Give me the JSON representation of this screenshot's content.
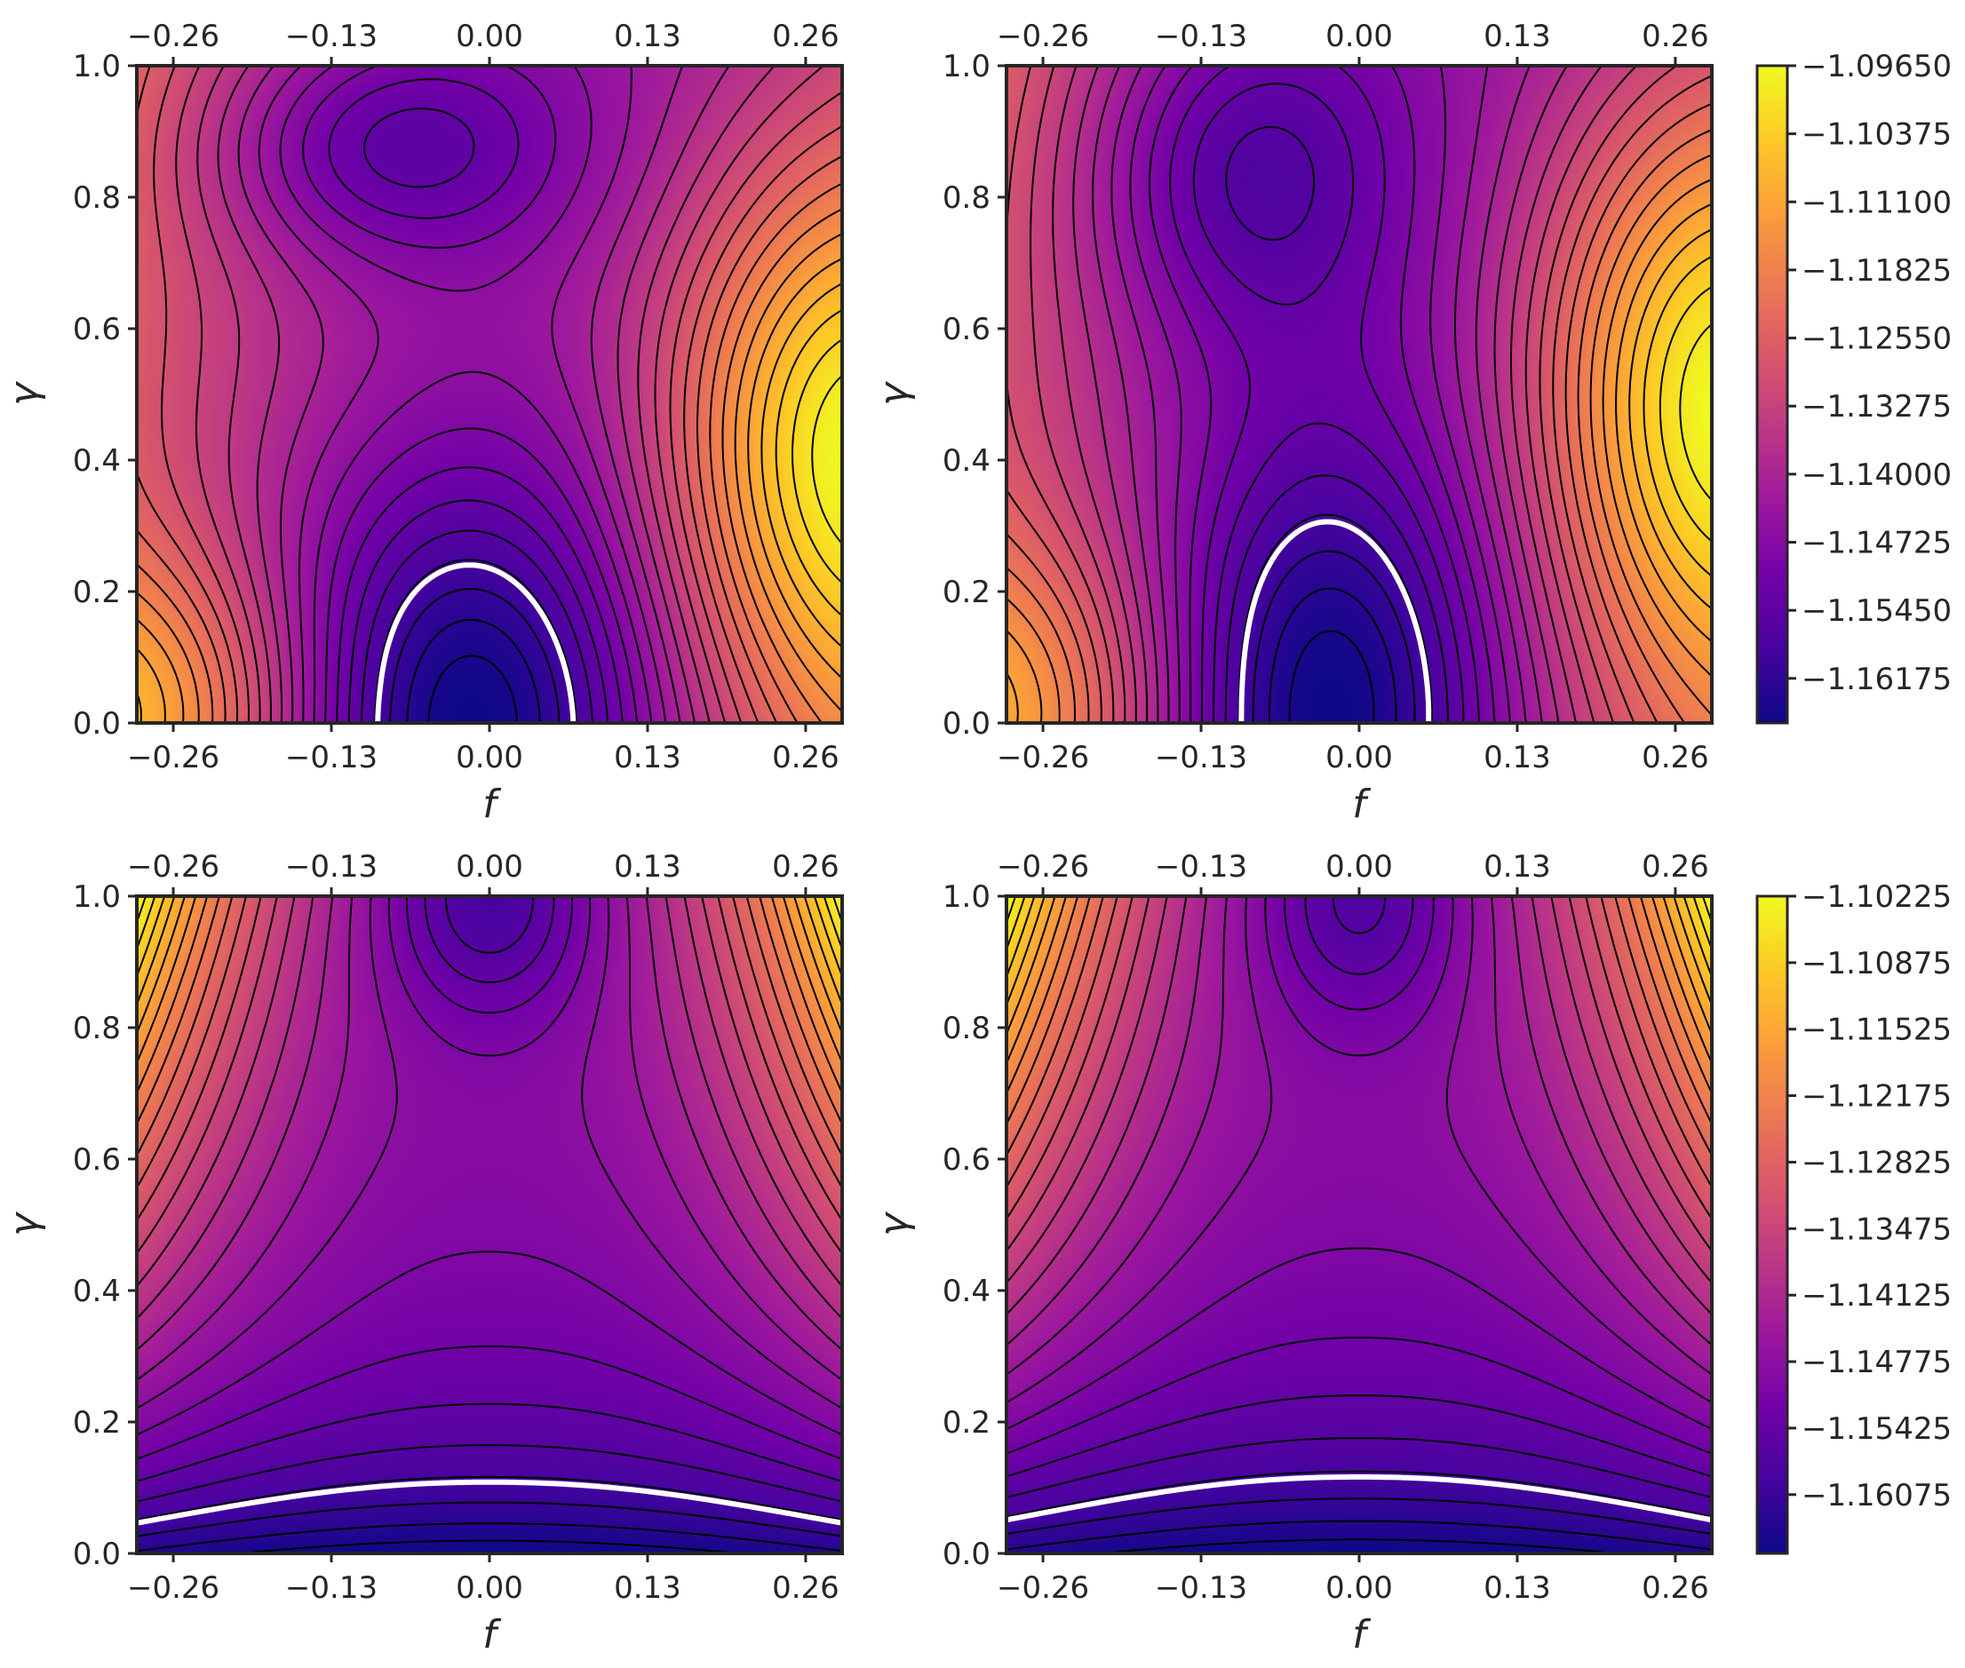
{
  "chart_data": [
    {
      "type": "heatmap",
      "panel": "top-left",
      "xlabel": "f",
      "ylabel": "γ",
      "x_ticks": [
        "−0.26",
        "−0.13",
        "0.00",
        "0.13",
        "0.26"
      ],
      "x_tick_values": [
        -0.26,
        -0.13,
        0.0,
        0.13,
        0.26
      ],
      "y_ticks": [
        "0.0",
        "0.2",
        "0.4",
        "0.6",
        "0.8",
        "1.0"
      ],
      "y_tick_values": [
        0.0,
        0.2,
        0.4,
        0.6,
        0.8,
        1.0
      ],
      "xlim": [
        -0.29,
        0.29
      ],
      "ylim": [
        0.0,
        1.0
      ],
      "minima": [
        {
          "f": -0.02,
          "gamma": 0.0
        },
        {
          "f": -0.09,
          "gamma": 0.88
        }
      ],
      "maximum_edge": {
        "f": 0.29,
        "gamma": 0.42
      },
      "colorbar_group": 0,
      "grid": false
    },
    {
      "type": "heatmap",
      "panel": "top-right",
      "xlabel": "f",
      "ylabel": "γ",
      "x_ticks": [
        "−0.26",
        "−0.13",
        "0.00",
        "0.13",
        "0.26"
      ],
      "x_tick_values": [
        -0.26,
        -0.13,
        0.0,
        0.13,
        0.26
      ],
      "y_ticks": [
        "0.0",
        "0.2",
        "0.4",
        "0.6",
        "0.8",
        "1.0"
      ],
      "y_tick_values": [
        0.0,
        0.2,
        0.4,
        0.6,
        0.8,
        1.0
      ],
      "xlim": [
        -0.29,
        0.29
      ],
      "ylim": [
        0.0,
        1.0
      ],
      "minima": [
        {
          "f": -0.03,
          "gamma": 0.0
        },
        {
          "f": -0.1,
          "gamma": 0.85
        }
      ],
      "maximum_edge": {
        "f": 0.29,
        "gamma": 0.5
      },
      "colorbar_group": 0,
      "grid": false
    },
    {
      "type": "heatmap",
      "panel": "bottom-left",
      "xlabel": "f",
      "ylabel": "γ",
      "x_ticks": [
        "−0.26",
        "−0.13",
        "0.00",
        "0.13",
        "0.26"
      ],
      "x_tick_values": [
        -0.26,
        -0.13,
        0.0,
        0.13,
        0.26
      ],
      "y_ticks": [
        "0.0",
        "0.2",
        "0.4",
        "0.6",
        "0.8",
        "1.0"
      ],
      "y_tick_values": [
        0.0,
        0.2,
        0.4,
        0.6,
        0.8,
        1.0
      ],
      "xlim": [
        -0.29,
        0.29
      ],
      "ylim": [
        0.0,
        1.0
      ],
      "minima": [
        {
          "f": 0.0,
          "gamma": 0.0
        },
        {
          "f": 0.0,
          "gamma": 1.0
        }
      ],
      "maximum_edge": {
        "f": -0.29,
        "gamma": 1.0
      },
      "colorbar_group": 1,
      "grid": false
    },
    {
      "type": "heatmap",
      "panel": "bottom-right",
      "xlabel": "f",
      "ylabel": "γ",
      "x_ticks": [
        "−0.26",
        "−0.13",
        "0.00",
        "0.13",
        "0.26"
      ],
      "x_tick_values": [
        -0.26,
        -0.13,
        0.0,
        0.13,
        0.26
      ],
      "y_ticks": [
        "0.0",
        "0.2",
        "0.4",
        "0.6",
        "0.8",
        "1.0"
      ],
      "y_tick_values": [
        0.0,
        0.2,
        0.4,
        0.6,
        0.8,
        1.0
      ],
      "xlim": [
        -0.29,
        0.29
      ],
      "ylim": [
        0.0,
        1.0
      ],
      "minima": [
        {
          "f": 0.0,
          "gamma": 0.0
        },
        {
          "f": 0.0,
          "gamma": 1.0
        }
      ],
      "maximum_edge": {
        "f": -0.29,
        "gamma": 1.0
      },
      "colorbar_group": 1,
      "grid": false
    }
  ],
  "colorbars": [
    {
      "placement": "right-of-top-row",
      "colormap": "plasma",
      "ticks": [
        "−1.09650",
        "−1.10375",
        "−1.11100",
        "−1.11825",
        "−1.12550",
        "−1.13275",
        "−1.14000",
        "−1.14725",
        "−1.15450",
        "−1.16175"
      ],
      "tick_values": [
        -1.0965,
        -1.10375,
        -1.111,
        -1.11825,
        -1.1255,
        -1.13275,
        -1.14,
        -1.14725,
        -1.1545,
        -1.16175
      ],
      "range": [
        -1.1665,
        -1.0965
      ]
    },
    {
      "placement": "right-of-bottom-row",
      "colormap": "plasma",
      "ticks": [
        "−1.10225",
        "−1.10875",
        "−1.11525",
        "−1.12175",
        "−1.12825",
        "−1.13475",
        "−1.14125",
        "−1.14775",
        "−1.15425",
        "−1.16075"
      ],
      "tick_values": [
        -1.10225,
        -1.10875,
        -1.11525,
        -1.12175,
        -1.12825,
        -1.13475,
        -1.14125,
        -1.14775,
        -1.15425,
        -1.16075
      ],
      "range": [
        -1.1665,
        -1.10225
      ]
    }
  ],
  "colors": {
    "plasma": [
      "#0d0887",
      "#46039f",
      "#7201a8",
      "#9c179e",
      "#bd3786",
      "#d8576b",
      "#ed7953",
      "#fb9f3a",
      "#fdca26",
      "#f0f921"
    ],
    "contour_line": "#000000",
    "highlight_contour": "#ffffff",
    "axis_frame": "#262626"
  }
}
